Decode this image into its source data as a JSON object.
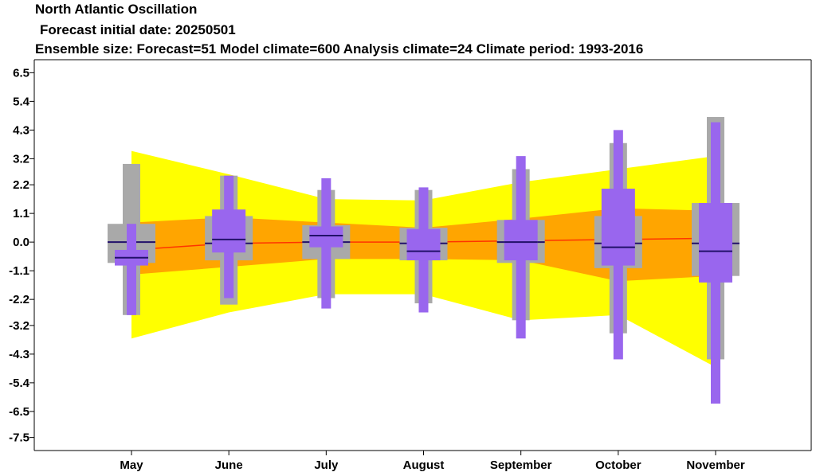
{
  "chart_data": {
    "type": "box",
    "title": "North Atlantic Oscillation",
    "subtitle1": "Forecast initial date: 20250501",
    "subtitle2": "Ensemble size: Forecast=51 Model climate=600 Analysis climate=24   Climate period: 1993-2016",
    "categories": [
      "May",
      "June",
      "July",
      "August",
      "September",
      "October",
      "November"
    ],
    "yticks": [
      "6.5",
      "5.4",
      "4.3",
      "3.2",
      "2.2",
      "1.1",
      "0.0",
      "-1.1",
      "-2.2",
      "-3.2",
      "-4.3",
      "-5.4",
      "-6.5",
      "-7.5"
    ],
    "ylim": [
      -8.0,
      7.0
    ],
    "envelope_outer": {
      "color": "#ffff00",
      "upper": [
        3.5,
        2.6,
        1.65,
        1.6,
        2.3,
        2.8,
        3.3
      ],
      "lower": [
        -3.7,
        -2.7,
        -2.0,
        -2.0,
        -3.0,
        -2.8,
        -4.8
      ]
    },
    "envelope_inner": {
      "color": "#ffa500",
      "upper": [
        0.75,
        0.95,
        0.75,
        0.55,
        0.9,
        1.3,
        1.2
      ],
      "lower": [
        -1.25,
        -0.95,
        -0.65,
        -0.65,
        -0.7,
        -1.5,
        -1.3
      ]
    },
    "climate_mean_line": {
      "color": "#ff3300",
      "values": [
        -0.3,
        -0.05,
        0.0,
        0.0,
        0.05,
        0.1,
        0.15
      ]
    },
    "model_climate": {
      "color": "#a9a9a9",
      "whisker_max": [
        3.0,
        2.55,
        2.0,
        2.0,
        2.8,
        3.8,
        4.8
      ],
      "q3": [
        0.7,
        1.0,
        0.65,
        0.55,
        0.85,
        1.0,
        1.5
      ],
      "median": [
        0.0,
        -0.05,
        0.0,
        -0.05,
        0.0,
        -0.05,
        -0.05
      ],
      "q1": [
        -0.8,
        -0.7,
        -0.65,
        -0.7,
        -0.8,
        -1.0,
        -1.3
      ],
      "whisker_min": [
        -2.8,
        -2.4,
        -2.15,
        -2.35,
        -3.0,
        -3.5,
        -4.5
      ]
    },
    "forecast": {
      "color": "#9966ee",
      "whisker_max": [
        0.7,
        2.55,
        2.45,
        2.1,
        3.3,
        4.3,
        4.6
      ],
      "q3": [
        -0.3,
        1.25,
        0.6,
        0.5,
        0.85,
        2.05,
        1.5
      ],
      "median": [
        -0.6,
        0.1,
        0.25,
        -0.35,
        0.0,
        -0.2,
        -0.35
      ],
      "q1": [
        -0.9,
        -0.4,
        -0.2,
        -0.7,
        -0.7,
        -0.9,
        -1.55
      ],
      "whisker_min": [
        -2.8,
        -2.15,
        -2.55,
        -2.7,
        -3.7,
        -4.5,
        -6.2
      ]
    }
  }
}
